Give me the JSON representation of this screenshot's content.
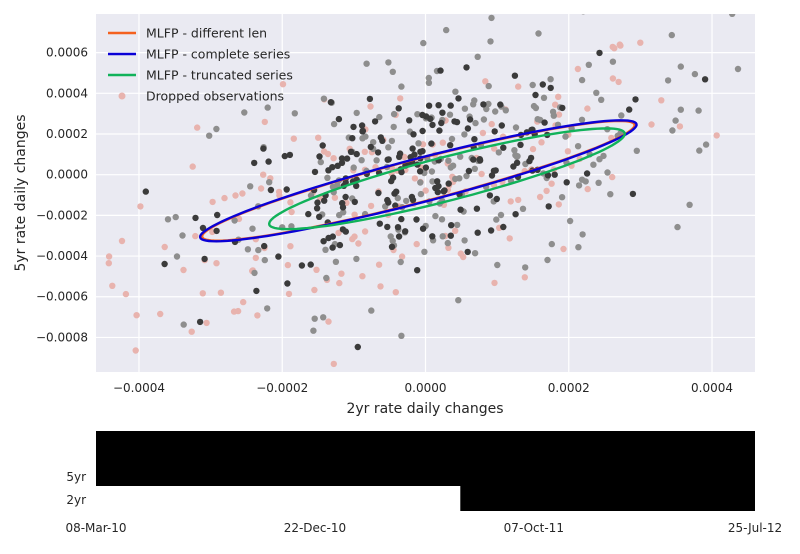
{
  "chart_data": [
    {
      "type": "scatter",
      "title": "",
      "xlabel": "2yr rate daily changes",
      "ylabel": "5yr rate daily changes",
      "xlim": [
        -0.00046,
        0.00046
      ],
      "ylim": [
        -0.00097,
        0.00079
      ],
      "xticks": [
        -0.0004,
        -0.0002,
        0.0,
        0.0002,
        0.0004
      ],
      "xtick_labels": [
        "−0.0004",
        "−0.0002",
        "0.0000",
        "0.0002",
        "0.0004"
      ],
      "yticks": [
        -0.0008,
        -0.0006,
        -0.0004,
        -0.0002,
        0.0,
        0.0002,
        0.0004,
        0.0006
      ],
      "ytick_labels": [
        "−0.0008",
        "−0.0006",
        "−0.0004",
        "−0.0002",
        "0.0000",
        "0.0002",
        "0.0004",
        "0.0006"
      ],
      "grid": true,
      "legend_position": "top-left",
      "legend": [
        {
          "label": "MLFP - different len",
          "kind": "line",
          "color": "#f4611f"
        },
        {
          "label": "MLFP - complete series",
          "kind": "line",
          "color": "#0a00d6"
        },
        {
          "label": "MLFP - truncated series",
          "kind": "line",
          "color": "#11b25a"
        },
        {
          "label": "Dropped observations",
          "kind": "marker",
          "color": "#e8b3ae"
        }
      ],
      "ellipses": [
        {
          "name": "MLFP - different len",
          "color": "#f4611f",
          "center": [
            -1e-05,
            -3e-05
          ],
          "semi_major": 0.000335,
          "semi_minor": 9.8e-05,
          "angle_deg": 26
        },
        {
          "name": "MLFP - complete series",
          "color": "#0a00d6",
          "center": [
            -1e-05,
            -3e-05
          ],
          "semi_major": 0.000338,
          "semi_minor": 0.0001,
          "angle_deg": 26
        },
        {
          "name": "MLFP - truncated series",
          "color": "#11b25a",
          "center": [
            3e-05,
            -2e-05
          ],
          "semi_major": 0.000275,
          "semi_minor": 0.0001,
          "angle_deg": 26
        }
      ],
      "point_groups": {
        "dropped": {
          "color": "#e8b3ae",
          "count": 180,
          "corr": 0.62,
          "sx": 0.00022,
          "sy": 0.00036,
          "mx": -6e-05,
          "my": -0.00012
        },
        "kept_dark": {
          "color": "#3b3b3b",
          "count": 200,
          "corr": 0.45,
          "sx": 0.00013,
          "sy": 0.00022,
          "mx": -2e-05,
          "my": 0.0
        },
        "kept_mid": {
          "color": "#8e8e8e",
          "count": 230,
          "corr": 0.35,
          "sx": 0.00019,
          "sy": 0.00032,
          "mx": 4e-05,
          "my": 4e-05
        }
      }
    },
    {
      "type": "timeline",
      "series": [
        {
          "name": "5yr",
          "start": "08-Mar-10",
          "end": "25-Jul-12",
          "color": "#000000"
        },
        {
          "name": "2yr",
          "start": "02-Jul-11",
          "end": "25-Jul-12",
          "color": "#000000"
        }
      ],
      "xticks": [
        "08-Mar-10",
        "22-Dec-10",
        "07-Oct-11",
        "25-Jul-12"
      ],
      "xlim": [
        "08-Mar-10",
        "25-Jul-12"
      ]
    }
  ]
}
